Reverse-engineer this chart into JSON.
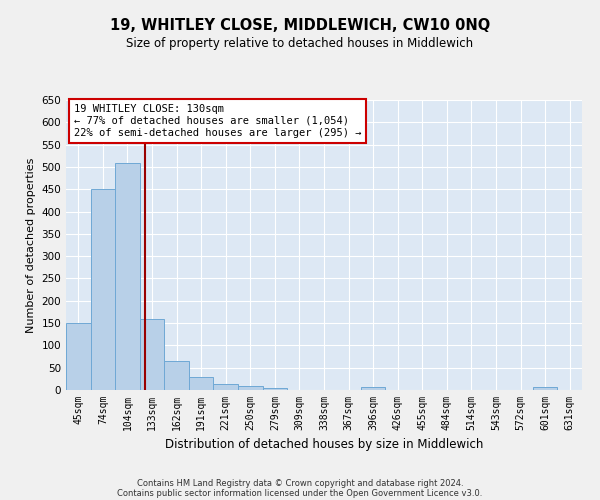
{
  "title": "19, WHITLEY CLOSE, MIDDLEWICH, CW10 0NQ",
  "subtitle": "Size of property relative to detached houses in Middlewich",
  "xlabel": "Distribution of detached houses by size in Middlewich",
  "ylabel": "Number of detached properties",
  "categories": [
    "45sqm",
    "74sqm",
    "104sqm",
    "133sqm",
    "162sqm",
    "191sqm",
    "221sqm",
    "250sqm",
    "279sqm",
    "309sqm",
    "338sqm",
    "367sqm",
    "396sqm",
    "426sqm",
    "455sqm",
    "484sqm",
    "514sqm",
    "543sqm",
    "572sqm",
    "601sqm",
    "631sqm"
  ],
  "values": [
    150,
    450,
    508,
    160,
    65,
    30,
    13,
    9,
    5,
    0,
    0,
    0,
    6,
    0,
    0,
    0,
    0,
    0,
    0,
    6,
    0
  ],
  "bar_color": "#b8d0e8",
  "bar_edge_color": "#6fa8d5",
  "vline_x_index": 2.72,
  "vline_color": "#990000",
  "annotation_text": "19 WHITLEY CLOSE: 130sqm\n← 77% of detached houses are smaller (1,054)\n22% of semi-detached houses are larger (295) →",
  "annotation_box_color": "#ffffff",
  "annotation_box_edge": "#cc0000",
  "ylim": [
    0,
    650
  ],
  "yticks": [
    0,
    50,
    100,
    150,
    200,
    250,
    300,
    350,
    400,
    450,
    500,
    550,
    600,
    650
  ],
  "bg_color": "#dde8f4",
  "grid_color": "#ffffff",
  "fig_bg_color": "#f0f0f0",
  "footer_line1": "Contains HM Land Registry data © Crown copyright and database right 2024.",
  "footer_line2": "Contains public sector information licensed under the Open Government Licence v3.0."
}
